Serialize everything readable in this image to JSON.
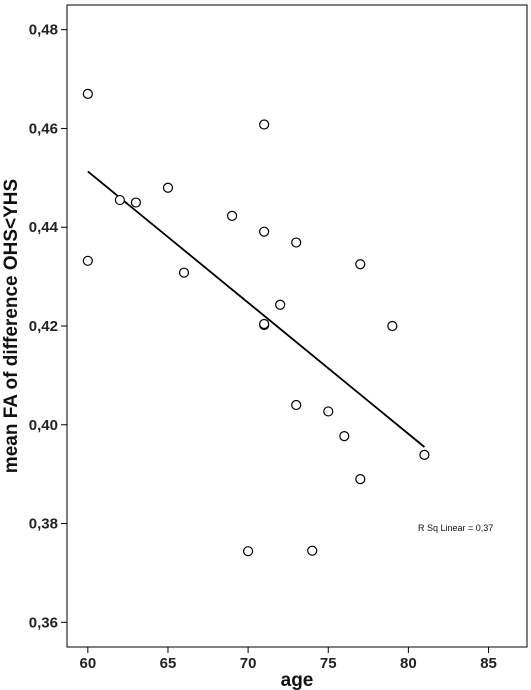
{
  "chart_data": {
    "type": "scatter",
    "xlabel": "age",
    "ylabel": "mean FA of difference OHS<YHS",
    "xlim": [
      58.7,
      87.4
    ],
    "ylim": [
      0.355,
      0.485
    ],
    "xticks": [
      60,
      65,
      70,
      75,
      80,
      85
    ],
    "yticks": [
      0.36,
      0.38,
      0.4,
      0.42,
      0.44,
      0.46,
      0.48
    ],
    "xtick_labels": [
      "60",
      "65",
      "70",
      "75",
      "80",
      "85"
    ],
    "ytick_labels": [
      "0,36",
      "0,38",
      "0,40",
      "0,42",
      "0,44",
      "0,46",
      "0,48"
    ],
    "grid": false,
    "points": [
      {
        "x": 60,
        "y": 0.467
      },
      {
        "x": 60,
        "y": 0.4332
      },
      {
        "x": 62,
        "y": 0.4455
      },
      {
        "x": 63,
        "y": 0.445
      },
      {
        "x": 65,
        "y": 0.448
      },
      {
        "x": 66,
        "y": 0.4308
      },
      {
        "x": 69,
        "y": 0.4423
      },
      {
        "x": 70,
        "y": 0.3744
      },
      {
        "x": 71,
        "y": 0.4608
      },
      {
        "x": 71,
        "y": 0.4391
      },
      {
        "x": 71,
        "y": 0.4202
      },
      {
        "x": 71,
        "y": 0.4204
      },
      {
        "x": 72,
        "y": 0.4243
      },
      {
        "x": 73,
        "y": 0.4369
      },
      {
        "x": 73,
        "y": 0.404
      },
      {
        "x": 74,
        "y": 0.3745
      },
      {
        "x": 75,
        "y": 0.4027
      },
      {
        "x": 76,
        "y": 0.3977
      },
      {
        "x": 77,
        "y": 0.4325
      },
      {
        "x": 77,
        "y": 0.389
      },
      {
        "x": 79,
        "y": 0.42
      },
      {
        "x": 81,
        "y": 0.3939
      }
    ],
    "fit_line": {
      "x": [
        60,
        81
      ],
      "y": [
        0.4513,
        0.3955
      ]
    },
    "annotation": "R Sq Linear = 0,37"
  }
}
